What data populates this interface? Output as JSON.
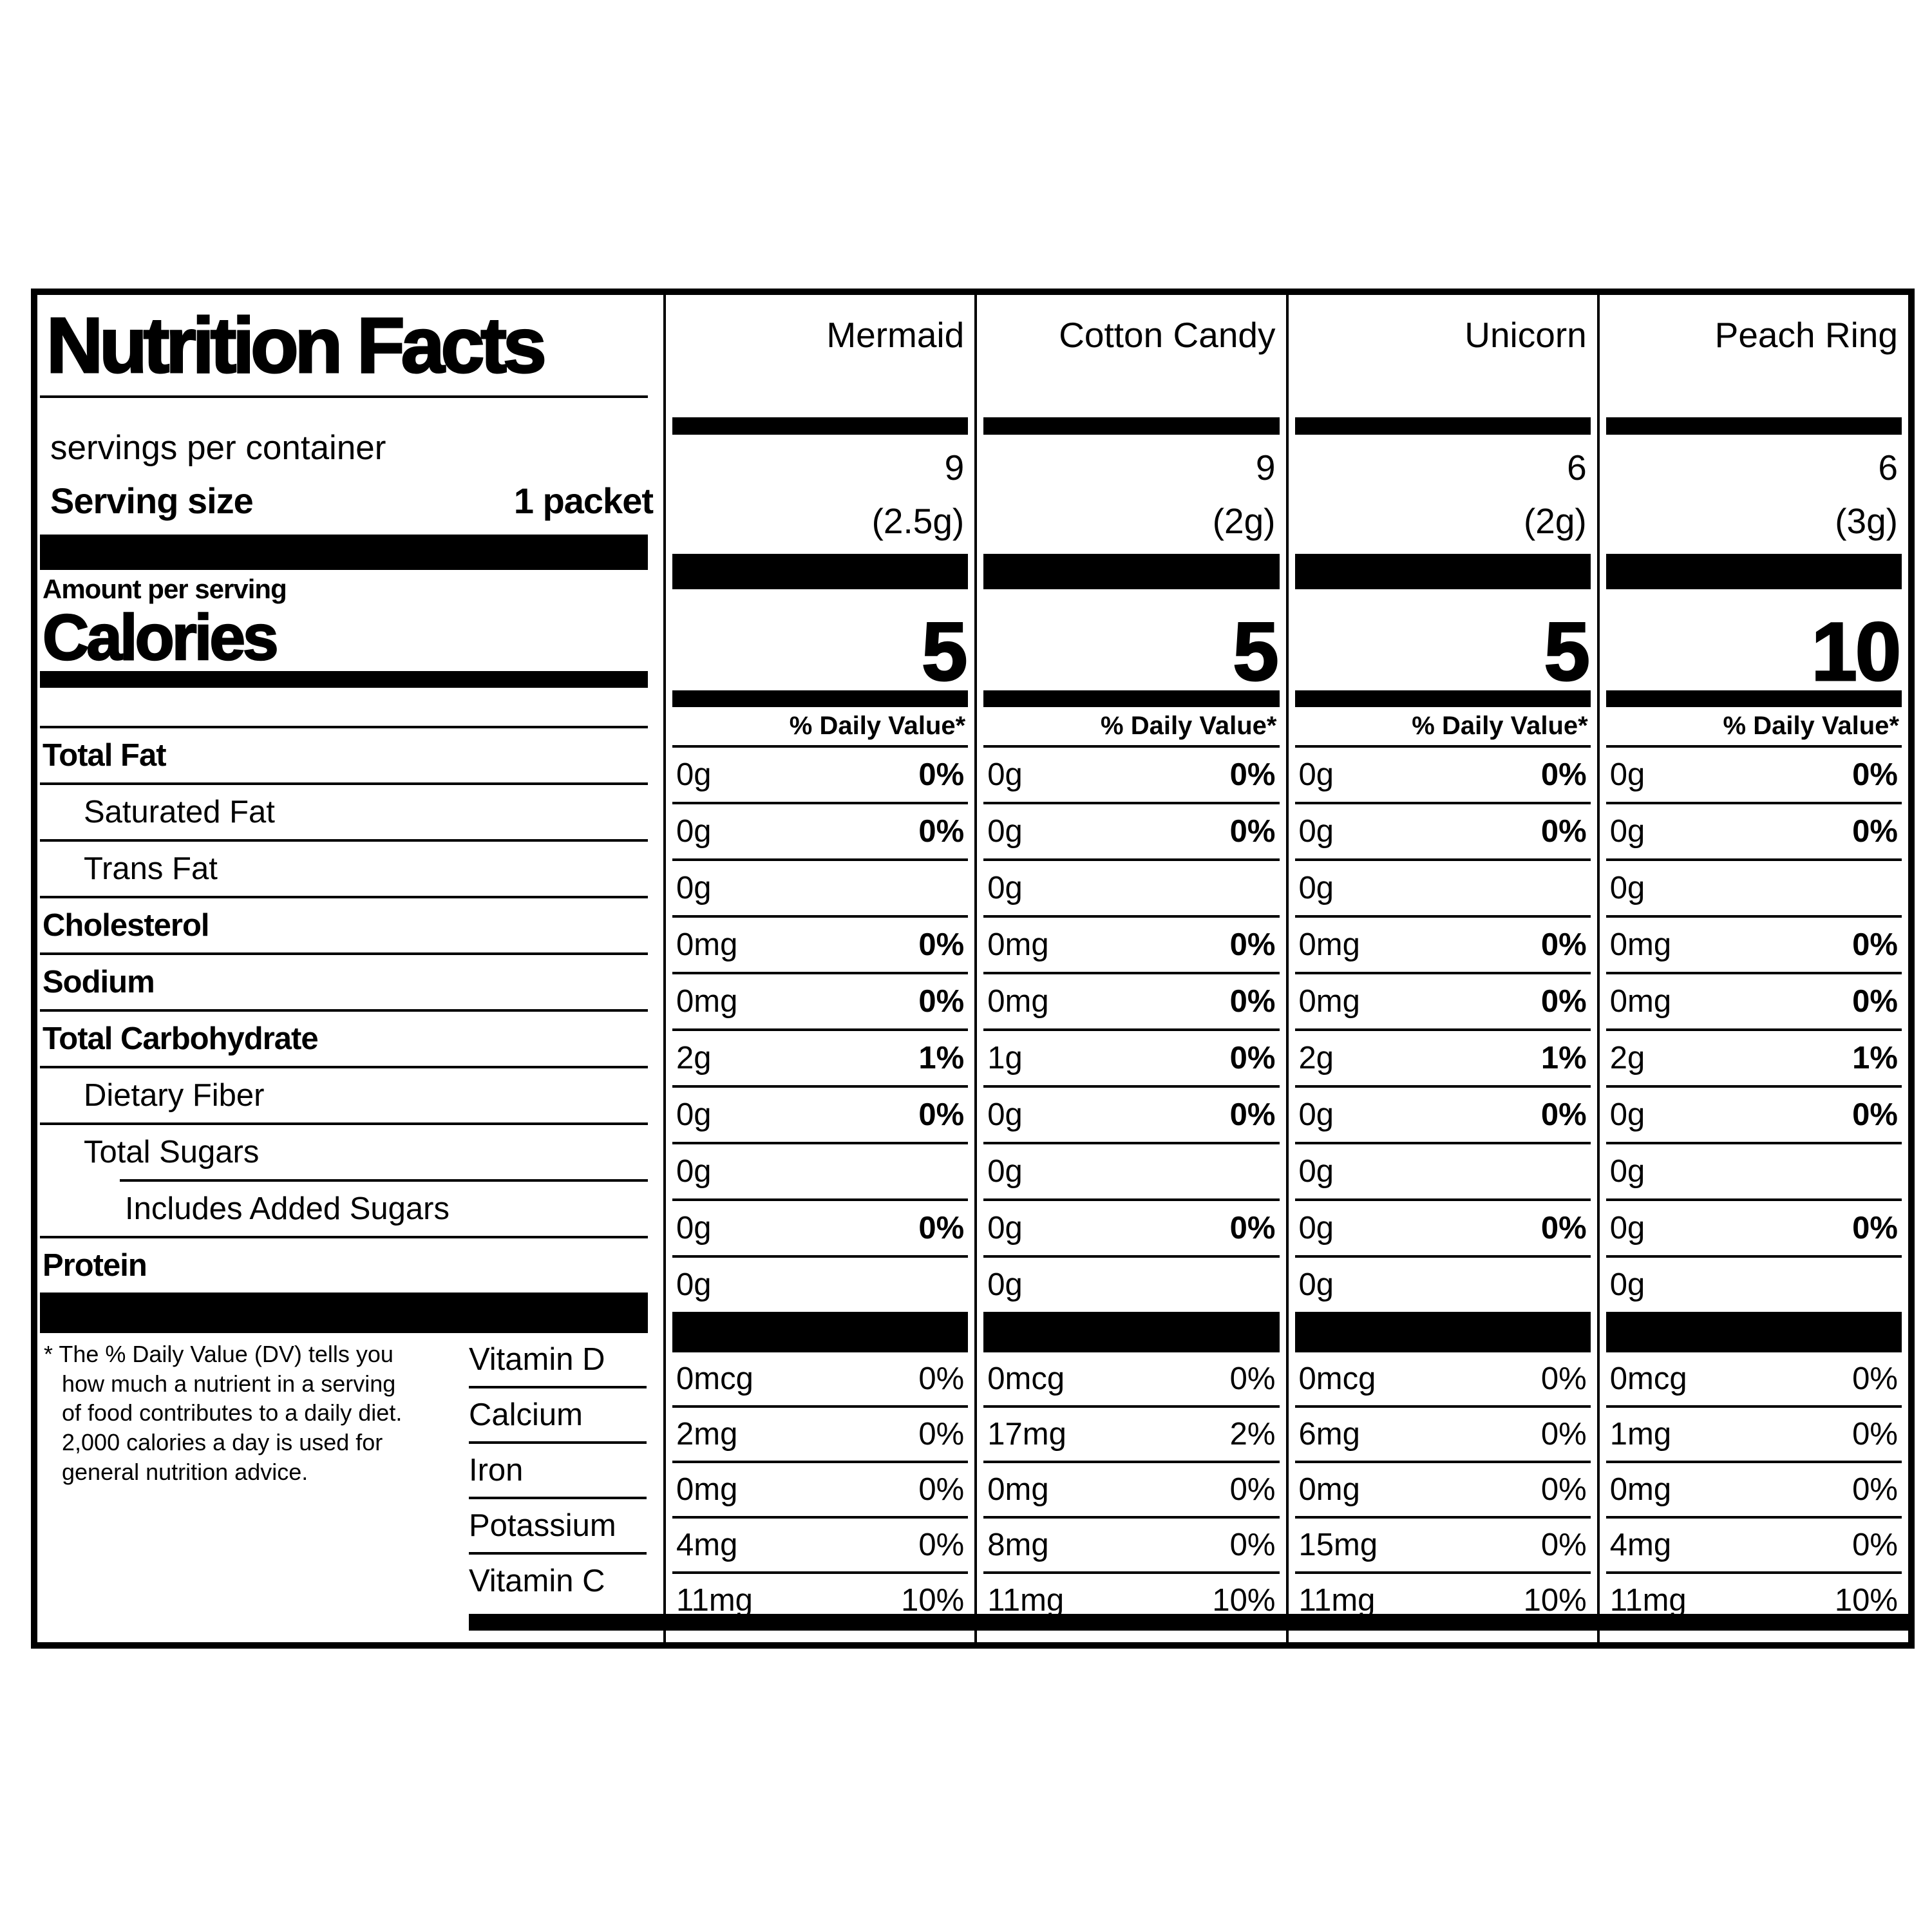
{
  "label": {
    "title": "Nutrition Facts",
    "servings_per_container_label": "servings per container",
    "serving_size_label": "Serving size",
    "serving_size_value": "1 packet",
    "amount_per_serving_label": "Amount per serving",
    "calories_label": "Calories",
    "daily_value_header": "% Daily Value*",
    "footnote": "* The % Daily Value (DV) tells you\nhow much a nutrient in a serving\nof food contributes to a daily diet.\n2,000 calories a day is used for\ngeneral nutrition advice.",
    "colors": {
      "ink": "#000000",
      "paper": "#ffffff"
    }
  },
  "columns": [
    {
      "name": "Mermaid",
      "servings_per_container": "9",
      "serving_weight": "(2.5g)",
      "calories": "5"
    },
    {
      "name": "Cotton Candy",
      "servings_per_container": "9",
      "serving_weight": "(2g)",
      "calories": "5"
    },
    {
      "name": "Unicorn",
      "servings_per_container": "6",
      "serving_weight": "(2g)",
      "calories": "5"
    },
    {
      "name": "Peach Ring",
      "servings_per_container": "6",
      "serving_weight": "(3g)",
      "calories": "10"
    }
  ],
  "nutrient_rows": [
    {
      "label": "Total Fat",
      "values": [
        {
          "amt": "0g",
          "dv": "0%"
        },
        {
          "amt": "0g",
          "dv": "0%"
        },
        {
          "amt": "0g",
          "dv": "0%"
        },
        {
          "amt": "0g",
          "dv": "0%"
        }
      ]
    },
    {
      "label": "Saturated Fat",
      "values": [
        {
          "amt": "0g",
          "dv": "0%"
        },
        {
          "amt": "0g",
          "dv": "0%"
        },
        {
          "amt": "0g",
          "dv": "0%"
        },
        {
          "amt": "0g",
          "dv": "0%"
        }
      ]
    },
    {
      "label": "Trans Fat",
      "values": [
        {
          "amt": "0g",
          "dv": ""
        },
        {
          "amt": "0g",
          "dv": ""
        },
        {
          "amt": "0g",
          "dv": ""
        },
        {
          "amt": "0g",
          "dv": ""
        }
      ]
    },
    {
      "label": "Cholesterol",
      "values": [
        {
          "amt": "0mg",
          "dv": "0%"
        },
        {
          "amt": "0mg",
          "dv": "0%"
        },
        {
          "amt": "0mg",
          "dv": "0%"
        },
        {
          "amt": "0mg",
          "dv": "0%"
        }
      ]
    },
    {
      "label": "Sodium",
      "values": [
        {
          "amt": "0mg",
          "dv": "0%"
        },
        {
          "amt": "0mg",
          "dv": "0%"
        },
        {
          "amt": "0mg",
          "dv": "0%"
        },
        {
          "amt": "0mg",
          "dv": "0%"
        }
      ]
    },
    {
      "label": "Total Carbohydrate",
      "values": [
        {
          "amt": "2g",
          "dv": "1%"
        },
        {
          "amt": "1g",
          "dv": "0%"
        },
        {
          "amt": "2g",
          "dv": "1%"
        },
        {
          "amt": "2g",
          "dv": "1%"
        }
      ]
    },
    {
      "label": "Dietary Fiber",
      "values": [
        {
          "amt": "0g",
          "dv": "0%"
        },
        {
          "amt": "0g",
          "dv": "0%"
        },
        {
          "amt": "0g",
          "dv": "0%"
        },
        {
          "amt": "0g",
          "dv": "0%"
        }
      ]
    },
    {
      "label": "Total Sugars",
      "values": [
        {
          "amt": "0g",
          "dv": ""
        },
        {
          "amt": "0g",
          "dv": ""
        },
        {
          "amt": "0g",
          "dv": ""
        },
        {
          "amt": "0g",
          "dv": ""
        }
      ]
    },
    {
      "label": "Includes Added Sugars",
      "values": [
        {
          "amt": "0g",
          "dv": "0%"
        },
        {
          "amt": "0g",
          "dv": "0%"
        },
        {
          "amt": "0g",
          "dv": "0%"
        },
        {
          "amt": "0g",
          "dv": "0%"
        }
      ]
    },
    {
      "label": "Protein",
      "values": [
        {
          "amt": "0g",
          "dv": ""
        },
        {
          "amt": "0g",
          "dv": ""
        },
        {
          "amt": "0g",
          "dv": ""
        },
        {
          "amt": "0g",
          "dv": ""
        }
      ]
    }
  ],
  "vitamin_rows": [
    {
      "label": "Vitamin D",
      "values": [
        {
          "amt": "0mcg",
          "dv": "0%"
        },
        {
          "amt": "0mcg",
          "dv": "0%"
        },
        {
          "amt": "0mcg",
          "dv": "0%"
        },
        {
          "amt": "0mcg",
          "dv": "0%"
        }
      ]
    },
    {
      "label": "Calcium",
      "values": [
        {
          "amt": "2mg",
          "dv": "0%"
        },
        {
          "amt": "17mg",
          "dv": "2%"
        },
        {
          "amt": "6mg",
          "dv": "0%"
        },
        {
          "amt": "1mg",
          "dv": "0%"
        }
      ]
    },
    {
      "label": "Iron",
      "values": [
        {
          "amt": "0mg",
          "dv": "0%"
        },
        {
          "amt": "0mg",
          "dv": "0%"
        },
        {
          "amt": "0mg",
          "dv": "0%"
        },
        {
          "amt": "0mg",
          "dv": "0%"
        }
      ]
    },
    {
      "label": "Potassium",
      "values": [
        {
          "amt": "4mg",
          "dv": "0%"
        },
        {
          "amt": "8mg",
          "dv": "0%"
        },
        {
          "amt": "15mg",
          "dv": "0%"
        },
        {
          "amt": "4mg",
          "dv": "0%"
        }
      ]
    },
    {
      "label": "Vitamin C",
      "values": [
        {
          "amt": "11mg",
          "dv": "10%"
        },
        {
          "amt": "11mg",
          "dv": "10%"
        },
        {
          "amt": "11mg",
          "dv": "10%"
        },
        {
          "amt": "11mg",
          "dv": "10%"
        }
      ]
    }
  ]
}
